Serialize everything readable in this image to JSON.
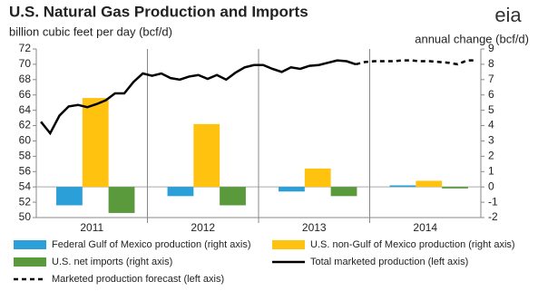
{
  "chart_data": {
    "type": "bar-line",
    "title": "U.S. Natural Gas Production and Imports",
    "left_axis_label": "billion cubic feet per day (bcf/d)",
    "right_axis_label": "annual change (bcf/d)",
    "logo": "eia",
    "categories": [
      "2011",
      "2012",
      "2013",
      "2014"
    ],
    "ylim": [
      50,
      72
    ],
    "yticks": [
      50,
      52,
      54,
      56,
      58,
      60,
      62,
      64,
      66,
      68,
      70,
      72
    ],
    "y2lim": [
      -2,
      9
    ],
    "y2ticks": [
      -2,
      -1,
      0,
      1,
      2,
      3,
      4,
      5,
      6,
      7,
      8,
      9
    ],
    "series": [
      {
        "name": "Federal Gulf of Mexico production (right axis)",
        "color": "#2a9fd8",
        "axis": "y2",
        "values": [
          -1.2,
          -0.6,
          -0.3,
          0.1
        ]
      },
      {
        "name": "U.S. non-Gulf of Mexico production (right axis)",
        "color": "#ffc20e",
        "axis": "y2",
        "values": [
          5.8,
          4.1,
          1.2,
          0.4
        ]
      },
      {
        "name": "U.S. net imports (right axis)",
        "color": "#5a9a3c",
        "axis": "y2",
        "values": [
          -1.7,
          -1.2,
          -0.6,
          -0.1
        ]
      }
    ],
    "line_series": [
      {
        "name": "Total marketed production (left axis)",
        "color": "#000000",
        "style": "solid",
        "values": [
          62.5,
          61.0,
          63.3,
          64.5,
          64.7,
          64.4,
          64.8,
          65.3,
          66.2,
          66.2,
          67.7,
          68.8,
          68.5,
          68.8,
          68.2,
          68.0,
          68.4,
          68.6,
          68.1,
          68.6,
          68.0,
          68.9,
          69.6,
          69.9,
          69.9,
          69.4,
          69.0,
          69.6,
          69.4,
          69.8,
          69.9,
          70.2,
          70.5,
          70.4,
          70.0,
          null,
          null,
          null,
          null,
          null,
          null,
          null,
          null,
          null,
          null,
          null,
          null,
          null
        ]
      },
      {
        "name": "Marketed production forecast (left axis)",
        "color": "#000000",
        "style": "dashed",
        "values": [
          null,
          null,
          null,
          null,
          null,
          null,
          null,
          null,
          null,
          null,
          null,
          null,
          null,
          null,
          null,
          null,
          null,
          null,
          null,
          null,
          null,
          null,
          null,
          null,
          null,
          null,
          null,
          null,
          null,
          null,
          null,
          null,
          null,
          null,
          70.0,
          70.3,
          70.4,
          70.4,
          70.4,
          70.5,
          70.5,
          70.4,
          70.4,
          70.3,
          70.2,
          70.0,
          70.5,
          70.5
        ]
      }
    ]
  }
}
